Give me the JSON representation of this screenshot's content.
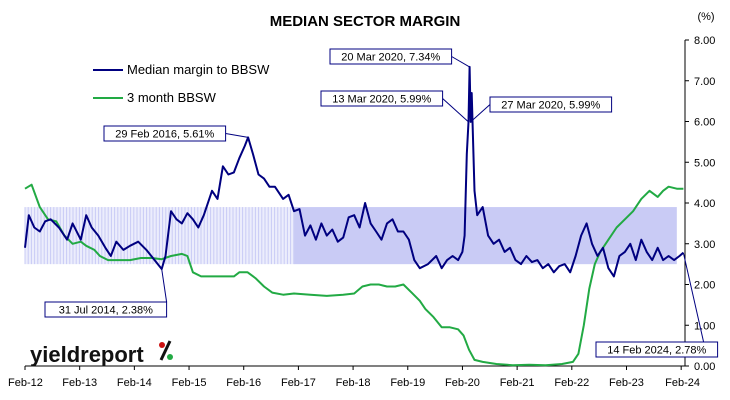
{
  "chart_data": {
    "type": "line",
    "title": "MEDIAN SECTOR MARGIN",
    "yunit": "(%)",
    "ylim": [
      0,
      8
    ],
    "yticks": [
      "0.00",
      "1.00",
      "2.00",
      "3.00",
      "4.00",
      "5.00",
      "6.00",
      "7.00",
      "8.00"
    ],
    "xticks": [
      "Feb-12",
      "Feb-13",
      "Feb-14",
      "Feb-15",
      "Feb-16",
      "Feb-17",
      "Feb-18",
      "Feb-19",
      "Feb-20",
      "Feb-21",
      "Feb-22",
      "Feb-23",
      "Feb-24"
    ],
    "xlim": [
      2012.08,
      2024.15
    ],
    "legend_position": "top-left",
    "band": {
      "from": 2012.08,
      "to": 2024.0,
      "low": 2.5,
      "high": 3.9,
      "color": "#c9cbf5"
    },
    "series": [
      {
        "name": "Median margin to BBSW",
        "color": "#000080",
        "points": [
          [
            2012.08,
            2.9
          ],
          [
            2012.15,
            3.7
          ],
          [
            2012.25,
            3.4
          ],
          [
            2012.35,
            3.3
          ],
          [
            2012.45,
            3.55
          ],
          [
            2012.55,
            3.6
          ],
          [
            2012.7,
            3.4
          ],
          [
            2012.85,
            3.1
          ],
          [
            2012.95,
            3.5
          ],
          [
            2013.1,
            3.1
          ],
          [
            2013.2,
            3.7
          ],
          [
            2013.3,
            3.4
          ],
          [
            2013.42,
            3.2
          ],
          [
            2013.55,
            2.9
          ],
          [
            2013.65,
            2.7
          ],
          [
            2013.75,
            3.05
          ],
          [
            2013.88,
            2.85
          ],
          [
            2014.0,
            2.95
          ],
          [
            2014.15,
            3.05
          ],
          [
            2014.3,
            2.85
          ],
          [
            2014.45,
            2.6
          ],
          [
            2014.58,
            2.38
          ],
          [
            2014.65,
            2.7
          ],
          [
            2014.75,
            3.8
          ],
          [
            2014.85,
            3.6
          ],
          [
            2014.95,
            3.5
          ],
          [
            2015.05,
            3.75
          ],
          [
            2015.15,
            3.6
          ],
          [
            2015.25,
            3.4
          ],
          [
            2015.35,
            3.7
          ],
          [
            2015.5,
            4.3
          ],
          [
            2015.6,
            4.1
          ],
          [
            2015.7,
            4.9
          ],
          [
            2015.8,
            4.7
          ],
          [
            2015.9,
            4.75
          ],
          [
            2016.0,
            5.1
          ],
          [
            2016.1,
            5.4
          ],
          [
            2016.16,
            5.61
          ],
          [
            2016.25,
            5.2
          ],
          [
            2016.35,
            4.7
          ],
          [
            2016.45,
            4.6
          ],
          [
            2016.55,
            4.4
          ],
          [
            2016.65,
            4.4
          ],
          [
            2016.8,
            4.1
          ],
          [
            2016.9,
            4.2
          ],
          [
            2017.0,
            3.8
          ],
          [
            2017.1,
            3.85
          ],
          [
            2017.2,
            3.2
          ],
          [
            2017.3,
            3.45
          ],
          [
            2017.4,
            3.1
          ],
          [
            2017.5,
            3.5
          ],
          [
            2017.6,
            3.2
          ],
          [
            2017.7,
            3.35
          ],
          [
            2017.8,
            3.05
          ],
          [
            2017.9,
            3.15
          ],
          [
            2018.0,
            3.65
          ],
          [
            2018.1,
            3.7
          ],
          [
            2018.2,
            3.4
          ],
          [
            2018.3,
            4.0
          ],
          [
            2018.4,
            3.5
          ],
          [
            2018.5,
            3.3
          ],
          [
            2018.6,
            3.1
          ],
          [
            2018.7,
            3.5
          ],
          [
            2018.8,
            3.6
          ],
          [
            2018.9,
            3.3
          ],
          [
            2019.0,
            3.3
          ],
          [
            2019.1,
            3.1
          ],
          [
            2019.2,
            2.6
          ],
          [
            2019.3,
            2.4
          ],
          [
            2019.45,
            2.5
          ],
          [
            2019.6,
            2.7
          ],
          [
            2019.7,
            2.4
          ],
          [
            2019.8,
            2.6
          ],
          [
            2019.9,
            2.7
          ],
          [
            2020.0,
            2.6
          ],
          [
            2020.08,
            2.8
          ],
          [
            2020.12,
            3.2
          ],
          [
            2020.16,
            5.2
          ],
          [
            2020.19,
            5.99
          ],
          [
            2020.21,
            7.34
          ],
          [
            2020.23,
            5.99
          ],
          [
            2020.25,
            6.7
          ],
          [
            2020.3,
            4.3
          ],
          [
            2020.35,
            3.7
          ],
          [
            2020.45,
            3.9
          ],
          [
            2020.55,
            3.2
          ],
          [
            2020.65,
            3.0
          ],
          [
            2020.75,
            3.1
          ],
          [
            2020.85,
            2.8
          ],
          [
            2020.95,
            2.9
          ],
          [
            2021.05,
            2.6
          ],
          [
            2021.15,
            2.5
          ],
          [
            2021.25,
            2.7
          ],
          [
            2021.35,
            2.55
          ],
          [
            2021.45,
            2.6
          ],
          [
            2021.55,
            2.4
          ],
          [
            2021.65,
            2.5
          ],
          [
            2021.75,
            2.3
          ],
          [
            2021.85,
            2.45
          ],
          [
            2021.95,
            2.5
          ],
          [
            2022.05,
            2.3
          ],
          [
            2022.15,
            2.7
          ],
          [
            2022.25,
            3.2
          ],
          [
            2022.35,
            3.5
          ],
          [
            2022.45,
            3.0
          ],
          [
            2022.55,
            2.7
          ],
          [
            2022.65,
            2.9
          ],
          [
            2022.75,
            2.4
          ],
          [
            2022.85,
            2.2
          ],
          [
            2022.95,
            2.7
          ],
          [
            2023.05,
            2.8
          ],
          [
            2023.15,
            3.0
          ],
          [
            2023.25,
            2.6
          ],
          [
            2023.35,
            3.1
          ],
          [
            2023.45,
            2.8
          ],
          [
            2023.55,
            2.6
          ],
          [
            2023.65,
            2.9
          ],
          [
            2023.75,
            2.6
          ],
          [
            2023.85,
            2.7
          ],
          [
            2023.95,
            2.6
          ],
          [
            2024.05,
            2.7
          ],
          [
            2024.12,
            2.78
          ]
        ]
      },
      {
        "name": "3 month BBSW",
        "color": "#22aa44",
        "points": [
          [
            2012.08,
            4.35
          ],
          [
            2012.2,
            4.45
          ],
          [
            2012.35,
            3.9
          ],
          [
            2012.5,
            3.6
          ],
          [
            2012.65,
            3.55
          ],
          [
            2012.8,
            3.2
          ],
          [
            2012.95,
            3.0
          ],
          [
            2013.1,
            3.05
          ],
          [
            2013.2,
            2.95
          ],
          [
            2013.35,
            2.85
          ],
          [
            2013.45,
            2.7
          ],
          [
            2013.6,
            2.6
          ],
          [
            2013.8,
            2.6
          ],
          [
            2014.0,
            2.6
          ],
          [
            2014.2,
            2.65
          ],
          [
            2014.4,
            2.65
          ],
          [
            2014.58,
            2.62
          ],
          [
            2014.75,
            2.7
          ],
          [
            2014.95,
            2.75
          ],
          [
            2015.05,
            2.7
          ],
          [
            2015.15,
            2.3
          ],
          [
            2015.3,
            2.2
          ],
          [
            2015.5,
            2.2
          ],
          [
            2015.7,
            2.2
          ],
          [
            2015.9,
            2.2
          ],
          [
            2016.0,
            2.3
          ],
          [
            2016.15,
            2.3
          ],
          [
            2016.3,
            2.15
          ],
          [
            2016.45,
            1.95
          ],
          [
            2016.6,
            1.8
          ],
          [
            2016.8,
            1.75
          ],
          [
            2017.0,
            1.78
          ],
          [
            2017.3,
            1.75
          ],
          [
            2017.6,
            1.72
          ],
          [
            2017.9,
            1.75
          ],
          [
            2018.1,
            1.78
          ],
          [
            2018.25,
            1.95
          ],
          [
            2018.4,
            2.0
          ],
          [
            2018.55,
            2.0
          ],
          [
            2018.7,
            1.95
          ],
          [
            2018.85,
            1.95
          ],
          [
            2019.0,
            2.0
          ],
          [
            2019.15,
            1.8
          ],
          [
            2019.3,
            1.6
          ],
          [
            2019.4,
            1.4
          ],
          [
            2019.55,
            1.2
          ],
          [
            2019.7,
            0.95
          ],
          [
            2019.85,
            0.95
          ],
          [
            2020.0,
            0.9
          ],
          [
            2020.1,
            0.75
          ],
          [
            2020.2,
            0.4
          ],
          [
            2020.3,
            0.15
          ],
          [
            2020.45,
            0.1
          ],
          [
            2020.7,
            0.05
          ],
          [
            2021.0,
            0.02
          ],
          [
            2021.3,
            0.03
          ],
          [
            2021.6,
            0.02
          ],
          [
            2021.9,
            0.05
          ],
          [
            2022.1,
            0.1
          ],
          [
            2022.2,
            0.3
          ],
          [
            2022.3,
            1.0
          ],
          [
            2022.4,
            1.9
          ],
          [
            2022.5,
            2.5
          ],
          [
            2022.6,
            2.8
          ],
          [
            2022.75,
            3.1
          ],
          [
            2022.9,
            3.4
          ],
          [
            2023.05,
            3.6
          ],
          [
            2023.2,
            3.8
          ],
          [
            2023.35,
            4.1
          ],
          [
            2023.5,
            4.3
          ],
          [
            2023.65,
            4.15
          ],
          [
            2023.75,
            4.3
          ],
          [
            2023.85,
            4.4
          ],
          [
            2024.0,
            4.35
          ],
          [
            2024.12,
            4.35
          ]
        ]
      }
    ],
    "annotations": [
      {
        "label": "20 Mar 2020, 7.34%",
        "x": 2020.21,
        "y": 7.34
      },
      {
        "label": "13 Mar 2020, 5.99%",
        "x": 2020.19,
        "y": 5.99
      },
      {
        "label": "27 Mar 2020, 5.99%",
        "x": 2020.23,
        "y": 5.99
      },
      {
        "label": "29 Feb 2016, 5.61%",
        "x": 2016.16,
        "y": 5.61
      },
      {
        "label": "31 Jul 2014, 2.38%",
        "x": 2014.58,
        "y": 2.38
      },
      {
        "label": "14 Feb 2024, 2.78%",
        "x": 2024.12,
        "y": 2.78
      }
    ]
  },
  "brand": {
    "main": "yieldreport",
    "symbol": "%",
    "colors": {
      "text": "#111111",
      "symbol_top": "#cc1111",
      "symbol_bottom": "#22aa44"
    }
  }
}
